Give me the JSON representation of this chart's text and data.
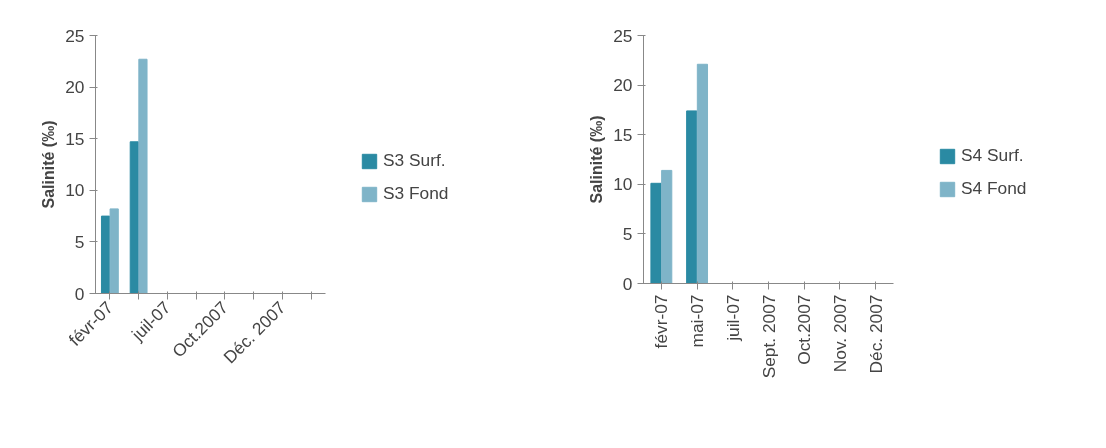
{
  "chart_data": [
    {
      "type": "bar",
      "ylabel": "Salinité (‰)",
      "categories": [
        "févr-07",
        null,
        "juil-07",
        null,
        "Oct.2007",
        null,
        "Déc. 2007",
        null
      ],
      "ylim": [
        0,
        25
      ],
      "yticks": [
        0,
        5,
        10,
        15,
        20,
        25
      ],
      "grid": false,
      "legend": "right",
      "series": [
        {
          "name": "S3 Surf.",
          "color": "#2a8aa3",
          "values": [
            7.5,
            14.7,
            null,
            null,
            null,
            null,
            null,
            null
          ]
        },
        {
          "name": "S3 Fond",
          "color": "#7fb4c8",
          "values": [
            8.2,
            22.7,
            null,
            null,
            null,
            null,
            null,
            null
          ]
        }
      ]
    },
    {
      "type": "bar",
      "ylabel": "Salinité (‰)",
      "categories": [
        "févr-07",
        "mai-07",
        "juil-07",
        "Sept. 2007",
        "Oct.2007",
        "Nov. 2007",
        "Déc. 2007"
      ],
      "ylim": [
        0,
        25
      ],
      "yticks": [
        0,
        5,
        10,
        15,
        20,
        25
      ],
      "grid": false,
      "legend": "right",
      "series": [
        {
          "name": "S4 Surf.",
          "color": "#2a8aa3",
          "values": [
            10.1,
            17.4,
            null,
            null,
            null,
            null,
            null
          ]
        },
        {
          "name": "S4 Fond",
          "color": "#7fb4c8",
          "values": [
            11.4,
            22.1,
            null,
            null,
            null,
            null,
            null
          ]
        }
      ]
    }
  ]
}
